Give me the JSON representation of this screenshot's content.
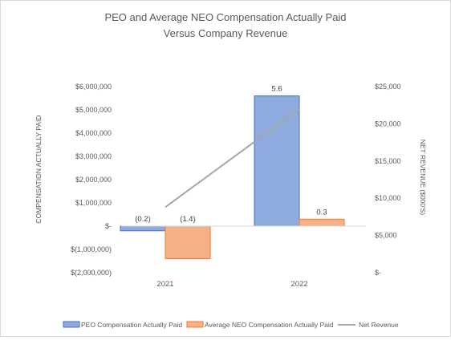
{
  "chart_data": {
    "type": "bar",
    "title_line1": "PEO and Average NEO Compensation Actually Paid",
    "title_line2": "Versus Company Revenue",
    "categories": [
      "2021",
      "2022"
    ],
    "ylabel": "COMPENSATION ACTUALLY PAID",
    "y2label": "NET REVENUE ($000'S)",
    "ylim": [
      -2000000,
      6000000
    ],
    "y2lim": [
      0,
      25000
    ],
    "yticks": [
      {
        "value": 6000000,
        "label": "$6,000,000"
      },
      {
        "value": 5000000,
        "label": "$5,000,000"
      },
      {
        "value": 4000000,
        "label": "$4,000,000"
      },
      {
        "value": 3000000,
        "label": "$3,000,000"
      },
      {
        "value": 2000000,
        "label": "$2,000,000"
      },
      {
        "value": 1000000,
        "label": "$1,000,000"
      },
      {
        "value": 0,
        "label": "$-"
      },
      {
        "value": -1000000,
        "label": "$(1,000,000)"
      },
      {
        "value": -2000000,
        "label": "$(2,000,000)"
      }
    ],
    "y2ticks": [
      {
        "value": 25000,
        "label": "$25,000"
      },
      {
        "value": 20000,
        "label": "$20,000"
      },
      {
        "value": 15000,
        "label": "$15,000"
      },
      {
        "value": 10000,
        "label": "$10,000"
      },
      {
        "value": 5000,
        "label": "$5,000"
      },
      {
        "value": 0,
        "label": "$-"
      }
    ],
    "series": [
      {
        "name": "PEO Compensation Actually Paid",
        "kind": "bar",
        "values": [
          -200000,
          5600000
        ],
        "labels": [
          "(0.2)",
          "5.6"
        ],
        "fill": "#8faadc",
        "stroke": "#4472c4"
      },
      {
        "name": "Average NEO Compensation Actually Paid",
        "kind": "bar",
        "values": [
          -1400000,
          300000
        ],
        "labels": [
          "(1.4)",
          "0.3"
        ],
        "fill": "#f4b183",
        "stroke": "#ed7d31"
      },
      {
        "name": "Net Revenue",
        "kind": "line",
        "axis": "right",
        "values": [
          8800,
          22000
        ],
        "color": "#a6a6a6"
      }
    ],
    "legend_position": "bottom",
    "grid": false
  }
}
